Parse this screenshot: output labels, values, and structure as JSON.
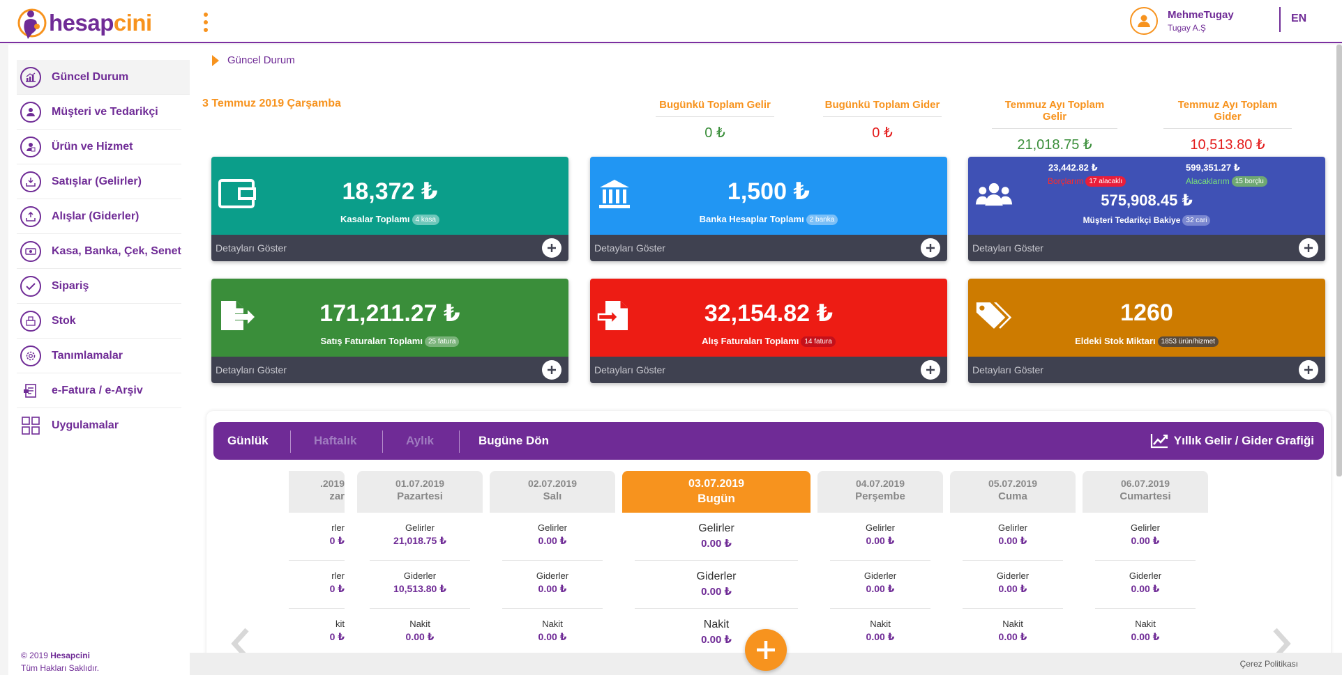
{
  "header": {
    "logo_part1": "hesap",
    "logo_part2": "cini",
    "user_name": "MehmeTugay",
    "user_company": "Tugay A.Ş",
    "language": "EN"
  },
  "sidebar": {
    "items": [
      {
        "label": "Güncel Durum",
        "icon": "chart-icon"
      },
      {
        "label": "Müşteri ve Tedarikçi",
        "icon": "user-icon"
      },
      {
        "label": "Ürün ve Hizmet",
        "icon": "product-icon"
      },
      {
        "label": "Satışlar (Gelirler)",
        "icon": "download-tray-icon"
      },
      {
        "label": "Alışlar (Giderler)",
        "icon": "upload-tray-icon"
      },
      {
        "label": "Kasa, Banka, Çek, Senet",
        "icon": "cash-icon"
      },
      {
        "label": "Sipariş",
        "icon": "check-icon"
      },
      {
        "label": "Stok",
        "icon": "box-icon"
      },
      {
        "label": "Tanımlamalar",
        "icon": "gear-icon"
      },
      {
        "label": "e-Fatura / e-Arşiv",
        "icon": "invoice-icon"
      },
      {
        "label": "Uygulamalar",
        "icon": "grid-icon"
      }
    ],
    "copyright_prefix": "© 2019",
    "copyright_brand": "Hesapcini",
    "rights": "Tüm Hakları Saklıdır."
  },
  "breadcrumb": "Güncel Durum",
  "date": "3 Temmuz 2019 Çarşamba",
  "summary": [
    {
      "label": "Bugünkü Toplam Gelir",
      "value": "0 ₺",
      "color": "#3a8e3a"
    },
    {
      "label": "Bugünkü Toplam Gider",
      "value": "0 ₺",
      "color": "#e31b1b"
    },
    {
      "label": "Temmuz Ayı Toplam Gelir",
      "value": "21,018.75 ₺",
      "color": "#3a8e3a"
    },
    {
      "label": "Temmuz Ayı Toplam Gider",
      "value": "10,513.80 ₺",
      "color": "#e31b1b"
    }
  ],
  "cards": {
    "details_label": "Detayları Göster",
    "kasa": {
      "amount": "18,372 ₺",
      "label": "Kasalar Toplamı",
      "badge": "4 kasa",
      "color": "#0b9e8a"
    },
    "banka": {
      "amount": "1,500 ₺",
      "label": "Banka Hesaplar Toplamı",
      "badge": "2 banka",
      "color": "#2196f3"
    },
    "cari": {
      "amount": "575,908.45 ₺",
      "label": "Müşteri Tedarikçi Bakiye",
      "badge": "32 cari",
      "color": "#3f51b5",
      "borc_amount": "23,442.82 ₺",
      "borc_label": "Borçlarım",
      "borc_badge": "17 alacaklı",
      "alacak_amount": "599,351.27 ₺",
      "alacak_label": "Alacaklarım",
      "alacak_badge": "15 borçlu"
    },
    "satis": {
      "amount": "171,211.27 ₺",
      "label": "Satış Faturaları Toplamı",
      "badge": "25 fatura",
      "color": "#3a8e3a"
    },
    "alis": {
      "amount": "32,154.82 ₺",
      "label": "Alış Faturaları Toplamı",
      "badge": "14 fatura",
      "color": "#ed1c14"
    },
    "stok": {
      "amount": "1260",
      "label": "Eldeki Stok Miktarı",
      "badge": "1853 ürün/hizmet",
      "color": "#cd7b00"
    }
  },
  "calendar": {
    "tabs": [
      "Günlük",
      "Haftalık",
      "Aylık",
      "Bugüne Dön"
    ],
    "graph_link": "Yıllık Gelir / Gider Grafiği",
    "row_labels": [
      "Gelirler",
      "Giderler",
      "Nakit"
    ],
    "days": [
      {
        "date": ".2019",
        "name": "zar",
        "values": [
          "0 ₺",
          "0 ₺",
          "0 ₺"
        ],
        "row_labels": [
          "rler",
          "rler",
          "kit"
        ]
      },
      {
        "date": "01.07.2019",
        "name": "Pazartesi",
        "values": [
          "21,018.75 ₺",
          "10,513.80 ₺",
          "0.00 ₺"
        ]
      },
      {
        "date": "02.07.2019",
        "name": "Salı",
        "values": [
          "0.00 ₺",
          "0.00 ₺",
          "0.00 ₺"
        ]
      },
      {
        "date": "03.07.2019",
        "name": "Bugün",
        "values": [
          "0.00 ₺",
          "0.00 ₺",
          "0.00 ₺"
        ]
      },
      {
        "date": "04.07.2019",
        "name": "Perşembe",
        "values": [
          "0.00 ₺",
          "0.00 ₺",
          "0.00 ₺"
        ]
      },
      {
        "date": "05.07.2019",
        "name": "Cuma",
        "values": [
          "0.00 ₺",
          "0.00 ₺",
          "0.00 ₺"
        ]
      },
      {
        "date": "06.07.2019",
        "name": "Cumartesi",
        "values": [
          "0.00 ₺",
          "0.00 ₺",
          "0.00 ₺"
        ]
      }
    ]
  },
  "footer": {
    "cookie_policy": "Çerez Politikası"
  }
}
